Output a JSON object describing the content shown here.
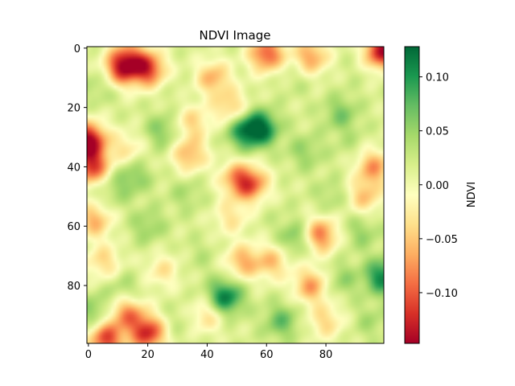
{
  "chart_data": {
    "type": "heatmap",
    "title": "NDVI Image",
    "colormap": "RdYlGn",
    "colors": {
      "low": "#a50026",
      "mid": "#ffffbf",
      "high": "#006837"
    },
    "grid_shape": [
      100,
      100
    ],
    "x_range": [
      -0.5,
      99.5
    ],
    "y_range": [
      99.5,
      -0.5
    ],
    "xticks": [
      0,
      20,
      40,
      60,
      80
    ],
    "yticks": [
      0,
      20,
      40,
      60,
      80
    ],
    "value_range": [
      -0.147,
      0.128
    ],
    "colorbar": {
      "label": "NDVI",
      "ticks": [
        0.1,
        0.05,
        0.0,
        -0.05,
        -0.1
      ],
      "tick_labels": [
        "0.10",
        "0.05",
        "0.00",
        "−0.05",
        "−0.10"
      ]
    },
    "blobs": [
      {
        "x": 99,
        "y": 1,
        "v": -0.14
      },
      {
        "x": 60,
        "y": 2,
        "v": -0.1
      },
      {
        "x": 75,
        "y": 3,
        "v": -0.07
      },
      {
        "x": 20,
        "y": 7,
        "v": -0.11
      },
      {
        "x": 13,
        "y": 4,
        "v": -0.09
      },
      {
        "x": 10,
        "y": 8,
        "v": -0.07
      },
      {
        "x": 42,
        "y": 10,
        "v": -0.06
      },
      {
        "x": 48,
        "y": 20,
        "v": -0.05
      },
      {
        "x": 30,
        "y": 15,
        "v": 0.02
      },
      {
        "x": 0,
        "y": 31,
        "v": -0.145
      },
      {
        "x": 1,
        "y": 40,
        "v": -0.11
      },
      {
        "x": 13,
        "y": 34,
        "v": -0.03
      },
      {
        "x": 34,
        "y": 36,
        "v": -0.06
      },
      {
        "x": 35,
        "y": 25,
        "v": -0.04
      },
      {
        "x": 58,
        "y": 27,
        "v": 0.12
      },
      {
        "x": 52,
        "y": 28,
        "v": 0.09
      },
      {
        "x": 5,
        "y": 12,
        "v": 0.05
      },
      {
        "x": 25,
        "y": 28,
        "v": 0.06
      },
      {
        "x": 85,
        "y": 22,
        "v": 0.06
      },
      {
        "x": 88,
        "y": 32,
        "v": 0.03
      },
      {
        "x": 73,
        "y": 35,
        "v": 0.05
      },
      {
        "x": 55,
        "y": 46,
        "v": -0.08
      },
      {
        "x": 50,
        "y": 44,
        "v": -0.06
      },
      {
        "x": 96,
        "y": 40,
        "v": -0.07
      },
      {
        "x": 93,
        "y": 50,
        "v": -0.05
      },
      {
        "x": 15,
        "y": 43,
        "v": 0.06
      },
      {
        "x": 8,
        "y": 48,
        "v": 0.04
      },
      {
        "x": 2,
        "y": 58,
        "v": -0.06
      },
      {
        "x": 33,
        "y": 49,
        "v": 0.04
      },
      {
        "x": 48,
        "y": 57,
        "v": -0.03
      },
      {
        "x": 62,
        "y": 56,
        "v": 0.02
      },
      {
        "x": 82,
        "y": 50,
        "v": 0.04
      },
      {
        "x": 78,
        "y": 63,
        "v": -0.09
      },
      {
        "x": 70,
        "y": 64,
        "v": 0.07
      },
      {
        "x": 92,
        "y": 62,
        "v": 0.05
      },
      {
        "x": 20,
        "y": 60,
        "v": 0.05
      },
      {
        "x": 38,
        "y": 70,
        "v": 0.03
      },
      {
        "x": 52,
        "y": 72,
        "v": -0.06
      },
      {
        "x": 62,
        "y": 72,
        "v": -0.05
      },
      {
        "x": 5,
        "y": 72,
        "v": -0.04
      },
      {
        "x": 25,
        "y": 75,
        "v": -0.03
      },
      {
        "x": 12,
        "y": 82,
        "v": 0.05
      },
      {
        "x": 46,
        "y": 84,
        "v": 0.12
      },
      {
        "x": 99,
        "y": 77,
        "v": 0.11
      },
      {
        "x": 75,
        "y": 80,
        "v": -0.07
      },
      {
        "x": 85,
        "y": 78,
        "v": 0.05
      },
      {
        "x": 2,
        "y": 89,
        "v": 0.06
      },
      {
        "x": 13,
        "y": 89,
        "v": -0.08
      },
      {
        "x": 20,
        "y": 96,
        "v": -0.12
      },
      {
        "x": 6,
        "y": 98,
        "v": -0.11
      },
      {
        "x": 40,
        "y": 90,
        "v": -0.04
      },
      {
        "x": 65,
        "y": 92,
        "v": 0.07
      },
      {
        "x": 80,
        "y": 92,
        "v": -0.04
      },
      {
        "x": 95,
        "y": 92,
        "v": 0.04
      },
      {
        "x": 30,
        "y": 92,
        "v": 0.03
      },
      {
        "x": 70,
        "y": 10,
        "v": 0.03
      },
      {
        "x": 90,
        "y": 8,
        "v": 0.02
      }
    ]
  }
}
